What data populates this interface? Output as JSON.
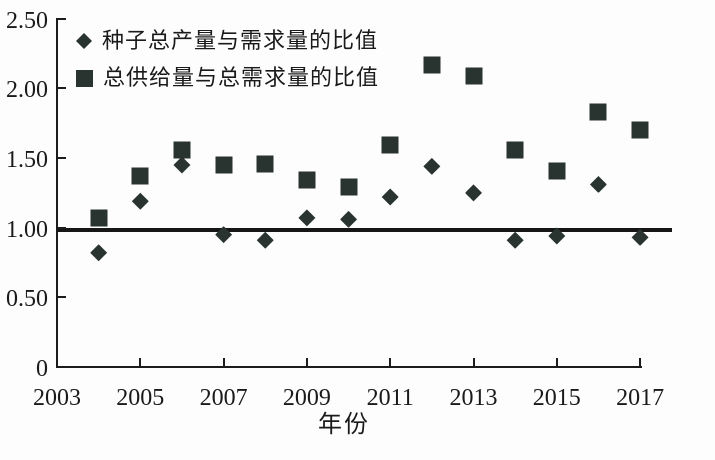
{
  "chart_data": {
    "type": "scatter",
    "title": "",
    "xlabel": "年份",
    "ylabel": "",
    "x_range": [
      2003,
      2017
    ],
    "y_range": [
      0,
      2.5
    ],
    "x_tick_values": [
      2003,
      2005,
      2007,
      2009,
      2011,
      2013,
      2015,
      2017
    ],
    "x_tick_labels": [
      "2003",
      "2005",
      "2007",
      "2009",
      "2011",
      "2013",
      "2015",
      "2017"
    ],
    "y_tick_values": [
      0,
      0.5,
      1.0,
      1.5,
      2.0,
      2.5
    ],
    "y_tick_labels": [
      "0",
      "0.50",
      "1.00",
      "1.50",
      "2.00",
      "2.50"
    ],
    "reference_line_value": 1.0,
    "grid": false,
    "legend_position": "top-left",
    "years": [
      2004,
      2005,
      2006,
      2007,
      2008,
      2009,
      2010,
      2011,
      2012,
      2013,
      2014,
      2015,
      2016,
      2017
    ],
    "series": [
      {
        "name": "种子总产量与需求量的比值",
        "marker": "diamond",
        "values": [
          0.82,
          1.19,
          1.45,
          0.95,
          0.91,
          1.07,
          1.06,
          1.22,
          1.44,
          1.25,
          0.91,
          0.94,
          1.31,
          0.93
        ]
      },
      {
        "name": "总供给量与总需求量的比值",
        "marker": "square",
        "values": [
          1.07,
          1.37,
          1.56,
          1.45,
          1.46,
          1.34,
          1.29,
          1.59,
          2.17,
          2.09,
          1.56,
          1.41,
          1.83,
          1.7
        ]
      }
    ],
    "colors": {
      "marker": "#293431",
      "axis": "#1c1c1c",
      "text": "#1a1a1a",
      "background": "#fdfdfd"
    }
  }
}
